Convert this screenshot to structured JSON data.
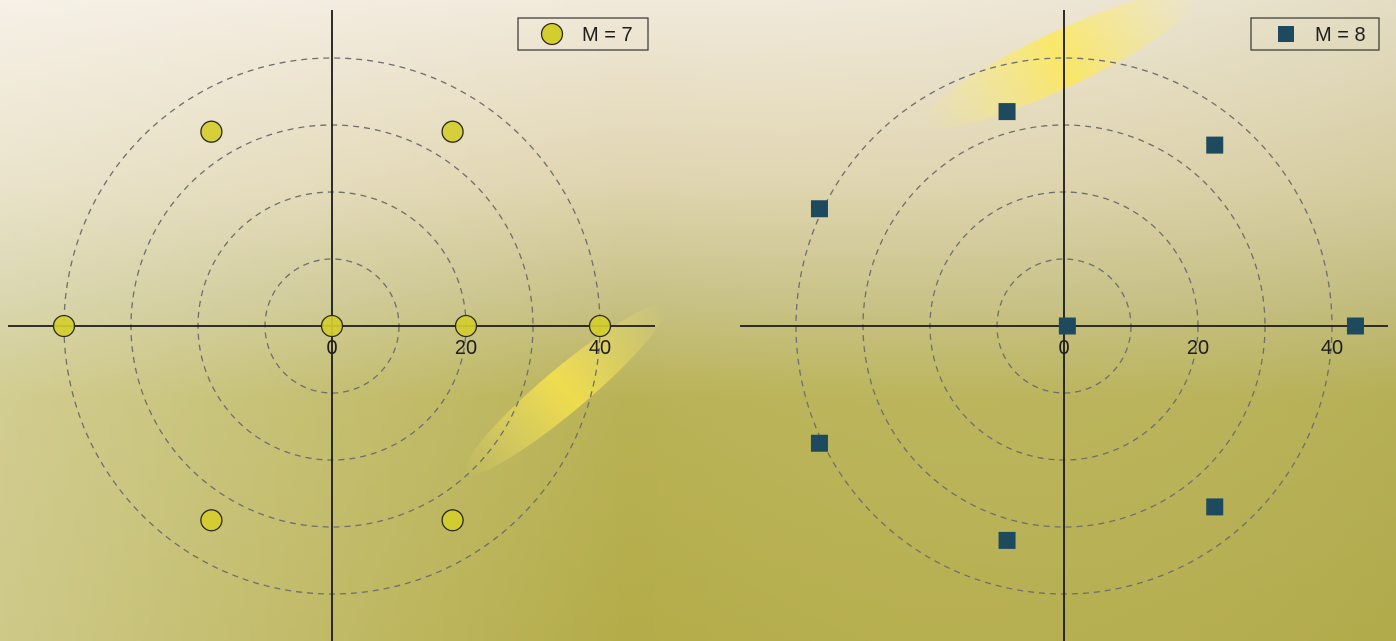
{
  "colors": {
    "circle_marker": "#d4cd2e",
    "square_marker": "#1d4a5e",
    "axis": "#1a1a1a",
    "ring": "#6e6e6e"
  },
  "chart_data": [
    {
      "type": "scatter",
      "layout": "polar-like constellation",
      "legend": "top-right",
      "marker": "circle",
      "series": [
        {
          "name": "M = 7",
          "points": [
            {
              "x": 0,
              "y": 0
            },
            {
              "x": 20,
              "y": 0
            },
            {
              "x": -40,
              "y": 0
            },
            {
              "x": 40,
              "y": 0
            },
            {
              "x": -18,
              "y": 29
            },
            {
              "x": 18,
              "y": 29
            },
            {
              "x": -18,
              "y": -29
            },
            {
              "x": 18,
              "y": -29
            }
          ]
        }
      ],
      "xticks": [
        0,
        20,
        40
      ],
      "rings": [
        10,
        20,
        30,
        40
      ],
      "xlim": [
        -48,
        48
      ],
      "ylim": [
        -47,
        47
      ],
      "grid": false
    },
    {
      "type": "scatter",
      "layout": "polar-like constellation",
      "legend": "top-right",
      "marker": "square",
      "series": [
        {
          "name": "M = 8",
          "points": [
            {
              "x": 0.5,
              "y": 0
            },
            {
              "x": 43.5,
              "y": 0
            },
            {
              "x": -8.5,
              "y": 32
            },
            {
              "x": 22.5,
              "y": 27
            },
            {
              "x": -36.5,
              "y": 17.5
            },
            {
              "x": -36.5,
              "y": -17.5
            },
            {
              "x": -8.5,
              "y": -32
            },
            {
              "x": 22.5,
              "y": -27
            }
          ]
        }
      ],
      "xticks": [
        0,
        20,
        40
      ],
      "rings": [
        10,
        20,
        30,
        40
      ],
      "xlim": [
        -48,
        48
      ],
      "ylim": [
        -47,
        47
      ],
      "grid": false
    }
  ]
}
